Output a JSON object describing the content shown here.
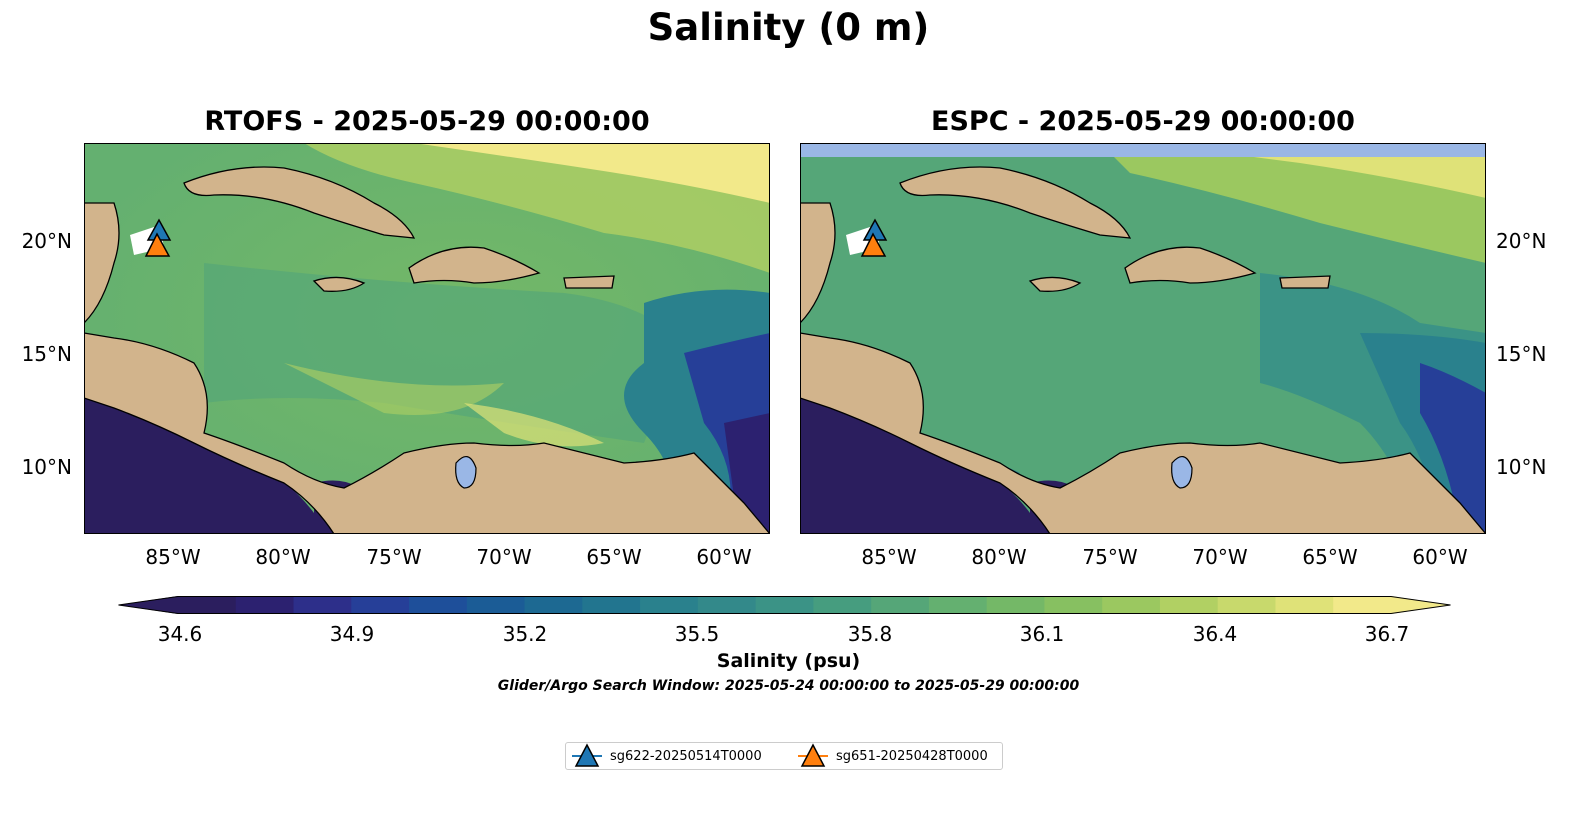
{
  "suptitle": "Salinity (0 m)",
  "panels": [
    {
      "title": "RTOFS - 2025-05-29 00:00:00"
    },
    {
      "title": "ESPC - 2025-05-29 00:00:00"
    }
  ],
  "lon_ticks": [
    "85°W",
    "80°W",
    "75°W",
    "70°W",
    "65°W",
    "60°W"
  ],
  "lat_ticks": [
    "20°N",
    "15°N",
    "10°N"
  ],
  "colorbar": {
    "tick_labels": [
      "34.6",
      "34.9",
      "35.2",
      "35.5",
      "35.8",
      "36.1",
      "36.4",
      "36.7"
    ],
    "label": "Salinity (psu)",
    "colors": [
      "#2b1e5e",
      "#2c2170",
      "#2d2f8a",
      "#263f98",
      "#1e4f9a",
      "#1b5c96",
      "#1d6992",
      "#22758f",
      "#2a818d",
      "#33898a",
      "#3b9386",
      "#469d7f",
      "#55a678",
      "#64b070",
      "#74b867",
      "#87c061",
      "#9bc860",
      "#b1d063",
      "#c8d96c",
      "#dfe278",
      "#f2e98a"
    ],
    "extend": "both"
  },
  "search_window": "Glider/Argo Search Window: 2025-05-24 00:00:00 to 2025-05-29 00:00:00",
  "legend": [
    {
      "label": "sg622-20250514T0000",
      "color": "#1f77b4"
    },
    {
      "label": "sg651-20250428T0000",
      "color": "#ff7f0e"
    }
  ],
  "map_colors": {
    "land": "#d2b48c",
    "lake": "#9ab7e6",
    "deep_ocean": "#2b1e5e",
    "mid_ocean": "#55a678",
    "high_ocean": "#8ac45f"
  }
}
